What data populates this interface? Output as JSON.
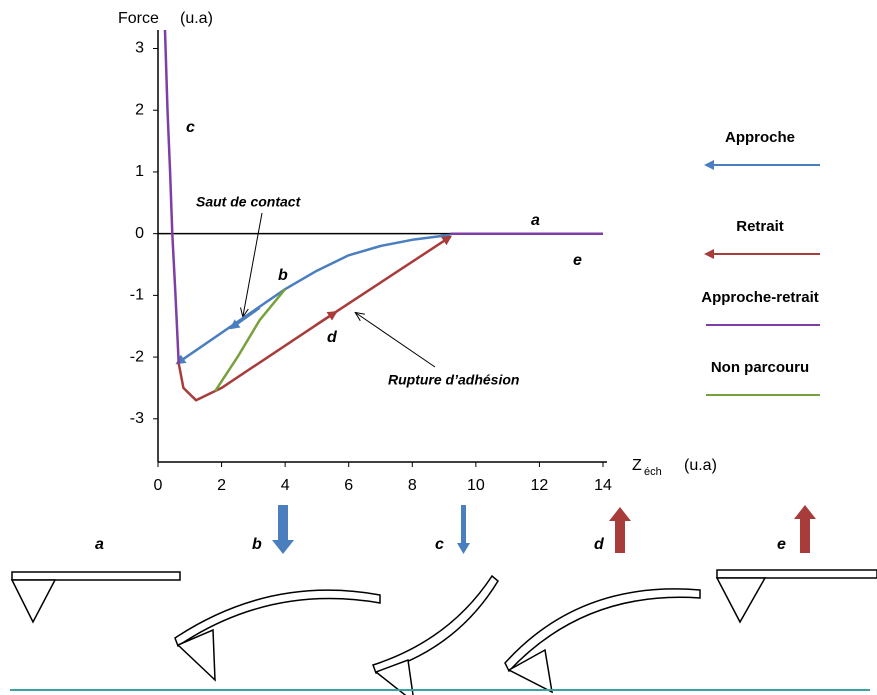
{
  "chart_data": {
    "type": "line",
    "y_label": "Force",
    "y_unit": "(u.a)",
    "x_label": "Z",
    "x_label_subscript": "éch",
    "x_unit": "(u.a)",
    "xlim": [
      0,
      14
    ],
    "ylim": [
      -3.7,
      3.3
    ],
    "xticks": [
      0,
      2,
      4,
      6,
      8,
      10,
      12,
      14
    ],
    "yticks": [
      -3,
      -2,
      -1,
      0,
      1,
      2,
      3
    ],
    "series": [
      {
        "name": "Approche",
        "color": "#4a7ebf",
        "x": [
          9.2,
          8,
          7,
          6,
          5,
          4,
          0.6
        ],
        "values": [
          -0.02,
          -0.1,
          -0.2,
          -0.35,
          -0.6,
          -0.9,
          -2.1
        ]
      },
      {
        "name": "Retrait",
        "color": "#a83c3a",
        "x": [
          0.65,
          0.8,
          1.2,
          2,
          5.5,
          9.2
        ],
        "values": [
          -2.1,
          -2.5,
          -2.7,
          -2.5,
          -1.3,
          -0.05
        ]
      },
      {
        "name": "Approche-retrait",
        "color": "#7d3fa6",
        "x": [
          0.22,
          0.3,
          0.38,
          0.45,
          0.55,
          0.65,
          5,
          9.2,
          11,
          14
        ],
        "values": [
          3.3,
          2,
          1,
          0,
          -1,
          -2.1,
          null,
          0,
          0,
          0
        ]
      },
      {
        "name": "Non parcouru",
        "color": "#77a13c",
        "x": [
          1.8,
          2.5,
          3.2,
          4
        ],
        "values": [
          -2.55,
          -2.0,
          -1.4,
          -0.9
        ]
      }
    ],
    "annotations": [
      "c",
      "Saut de contact",
      "b",
      "d",
      "Rupture d’adhésion",
      "a",
      "e"
    ]
  },
  "panels": [
    {
      "label": "a"
    },
    {
      "label": "b"
    },
    {
      "label": "c"
    },
    {
      "label": "d"
    },
    {
      "label": "e"
    }
  ]
}
